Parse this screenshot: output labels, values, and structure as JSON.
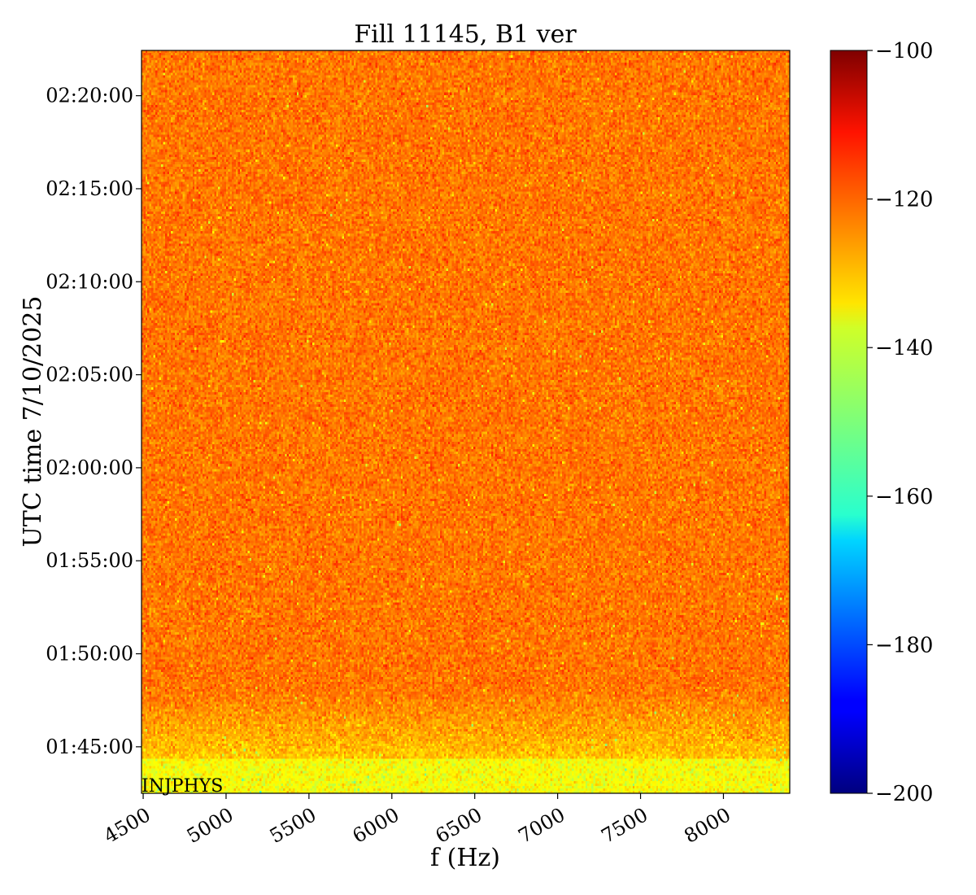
{
  "chart_data": {
    "type": "heatmap",
    "title": "Fill 11145, B1 ver",
    "xlabel": "f (Hz)",
    "ylabel": "UTC time 7/10/2025",
    "xlim": [
      4490,
      8400
    ],
    "x_ticks": [
      4500,
      5000,
      5500,
      6000,
      6500,
      7000,
      7500,
      8000
    ],
    "x_tick_labels": [
      "4500",
      "5000",
      "5500",
      "6000",
      "6500",
      "7000",
      "7500",
      "8000"
    ],
    "y_time_range": [
      "01:42:30",
      "02:22:26"
    ],
    "y_ticks": [
      "01:45:00",
      "01:50:00",
      "01:55:00",
      "02:00:00",
      "02:05:00",
      "02:10:00",
      "02:15:00",
      "02:20:00"
    ],
    "y_tick_labels": [
      "01:45:00",
      "01:50:00",
      "01:55:00",
      "02:00:00",
      "02:05:00",
      "02:10:00",
      "02:15:00",
      "02:20:00"
    ],
    "colorbar": {
      "colormap": "jet",
      "range": [
        -200,
        -100
      ],
      "ticks": [
        -200,
        -180,
        -160,
        -140,
        -120,
        -100
      ],
      "tick_labels": [
        "−200",
        "−180",
        "−160",
        "−140",
        "−120",
        "−100"
      ]
    },
    "levels": {
      "main": -124,
      "lower_band": -132,
      "bottom_band": -138
    },
    "annotation": "INJPHYS",
    "grid": false
  }
}
